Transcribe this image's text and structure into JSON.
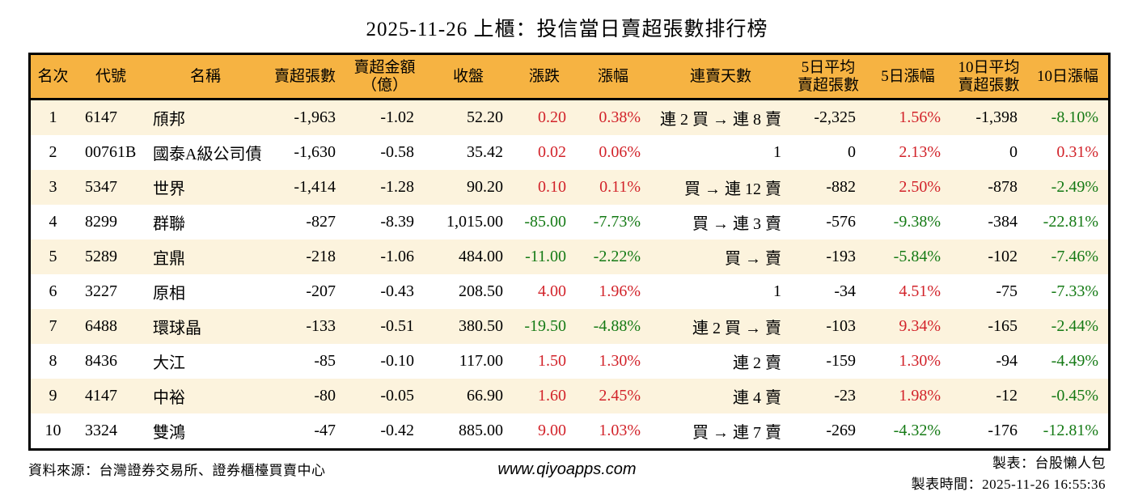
{
  "title": "2025-11-26 上櫃：投信當日賣超張數排行榜",
  "colors": {
    "header_bg": "#f6b342",
    "stripe_bg": "#fcf3dd",
    "row_bg": "#ffffff",
    "up_red": "#d2232a",
    "down_green": "#157a15",
    "border_black": "#000000"
  },
  "chart_data": {
    "type": "table",
    "title": "2025-11-26 上櫃：投信當日賣超張數排行榜",
    "columns": [
      {
        "key": "rank",
        "label_lines": [
          "名次"
        ]
      },
      {
        "key": "code",
        "label_lines": [
          "代號"
        ]
      },
      {
        "key": "name",
        "label_lines": [
          "名稱"
        ]
      },
      {
        "key": "sell_qty",
        "label_lines": [
          "賣超張數"
        ]
      },
      {
        "key": "sell_amount",
        "label_lines": [
          "賣超金額",
          "（億）"
        ]
      },
      {
        "key": "close",
        "label_lines": [
          "收盤"
        ]
      },
      {
        "key": "change",
        "label_lines": [
          "漲跌"
        ]
      },
      {
        "key": "change_pct",
        "label_lines": [
          "漲幅"
        ]
      },
      {
        "key": "streak",
        "label_lines": [
          "連賣天數"
        ]
      },
      {
        "key": "avg5_qty",
        "label_lines": [
          "5日平均",
          "賣超張數"
        ]
      },
      {
        "key": "pct5",
        "label_lines": [
          "5日漲幅"
        ]
      },
      {
        "key": "avg10_qty",
        "label_lines": [
          "10日平均",
          "賣超張數"
        ]
      },
      {
        "key": "pct10",
        "label_lines": [
          "10日漲幅"
        ]
      }
    ],
    "rows": [
      {
        "rank": "1",
        "code": "6147",
        "name": "頎邦",
        "sell_qty": "-1,963",
        "sell_amount": "-1.02",
        "close": "52.20",
        "change": "0.20",
        "change_color": "red",
        "change_pct": "0.38%",
        "change_pct_color": "red",
        "streak": "連 2 買 → 連 8 賣",
        "avg5_qty": "-2,325",
        "pct5": "1.56%",
        "pct5_color": "red",
        "avg10_qty": "-1,398",
        "pct10": "-8.10%",
        "pct10_color": "green"
      },
      {
        "rank": "2",
        "code": "00761B",
        "name": "國泰A級公司債",
        "sell_qty": "-1,630",
        "sell_amount": "-0.58",
        "close": "35.42",
        "change": "0.02",
        "change_color": "red",
        "change_pct": "0.06%",
        "change_pct_color": "red",
        "streak": "1",
        "avg5_qty": "0",
        "pct5": "2.13%",
        "pct5_color": "red",
        "avg10_qty": "0",
        "pct10": "0.31%",
        "pct10_color": "red"
      },
      {
        "rank": "3",
        "code": "5347",
        "name": "世界",
        "sell_qty": "-1,414",
        "sell_amount": "-1.28",
        "close": "90.20",
        "change": "0.10",
        "change_color": "red",
        "change_pct": "0.11%",
        "change_pct_color": "red",
        "streak": "買 → 連 12 賣",
        "avg5_qty": "-882",
        "pct5": "2.50%",
        "pct5_color": "red",
        "avg10_qty": "-878",
        "pct10": "-2.49%",
        "pct10_color": "green"
      },
      {
        "rank": "4",
        "code": "8299",
        "name": "群聯",
        "sell_qty": "-827",
        "sell_amount": "-8.39",
        "close": "1,015.00",
        "change": "-85.00",
        "change_color": "green",
        "change_pct": "-7.73%",
        "change_pct_color": "green",
        "streak": "買 → 連 3 賣",
        "avg5_qty": "-576",
        "pct5": "-9.38%",
        "pct5_color": "green",
        "avg10_qty": "-384",
        "pct10": "-22.81%",
        "pct10_color": "green"
      },
      {
        "rank": "5",
        "code": "5289",
        "name": "宜鼎",
        "sell_qty": "-218",
        "sell_amount": "-1.06",
        "close": "484.00",
        "change": "-11.00",
        "change_color": "green",
        "change_pct": "-2.22%",
        "change_pct_color": "green",
        "streak": "買 → 賣",
        "avg5_qty": "-193",
        "pct5": "-5.84%",
        "pct5_color": "green",
        "avg10_qty": "-102",
        "pct10": "-7.46%",
        "pct10_color": "green"
      },
      {
        "rank": "6",
        "code": "3227",
        "name": "原相",
        "sell_qty": "-207",
        "sell_amount": "-0.43",
        "close": "208.50",
        "change": "4.00",
        "change_color": "red",
        "change_pct": "1.96%",
        "change_pct_color": "red",
        "streak": "1",
        "avg5_qty": "-34",
        "pct5": "4.51%",
        "pct5_color": "red",
        "avg10_qty": "-75",
        "pct10": "-7.33%",
        "pct10_color": "green"
      },
      {
        "rank": "7",
        "code": "6488",
        "name": "環球晶",
        "sell_qty": "-133",
        "sell_amount": "-0.51",
        "close": "380.50",
        "change": "-19.50",
        "change_color": "green",
        "change_pct": "-4.88%",
        "change_pct_color": "green",
        "streak": "連 2 買 → 賣",
        "avg5_qty": "-103",
        "pct5": "9.34%",
        "pct5_color": "red",
        "avg10_qty": "-165",
        "pct10": "-2.44%",
        "pct10_color": "green"
      },
      {
        "rank": "8",
        "code": "8436",
        "name": "大江",
        "sell_qty": "-85",
        "sell_amount": "-0.10",
        "close": "117.00",
        "change": "1.50",
        "change_color": "red",
        "change_pct": "1.30%",
        "change_pct_color": "red",
        "streak": "連 2 賣",
        "avg5_qty": "-159",
        "pct5": "1.30%",
        "pct5_color": "red",
        "avg10_qty": "-94",
        "pct10": "-4.49%",
        "pct10_color": "green"
      },
      {
        "rank": "9",
        "code": "4147",
        "name": "中裕",
        "sell_qty": "-80",
        "sell_amount": "-0.05",
        "close": "66.90",
        "change": "1.60",
        "change_color": "red",
        "change_pct": "2.45%",
        "change_pct_color": "red",
        "streak": "連 4 賣",
        "avg5_qty": "-23",
        "pct5": "1.98%",
        "pct5_color": "red",
        "avg10_qty": "-12",
        "pct10": "-0.45%",
        "pct10_color": "green"
      },
      {
        "rank": "10",
        "code": "3324",
        "name": "雙鴻",
        "sell_qty": "-47",
        "sell_amount": "-0.42",
        "close": "885.00",
        "change": "9.00",
        "change_color": "red",
        "change_pct": "1.03%",
        "change_pct_color": "red",
        "streak": "買 → 連 7 賣",
        "avg5_qty": "-269",
        "pct5": "-4.32%",
        "pct5_color": "green",
        "avg10_qty": "-176",
        "pct10": "-12.81%",
        "pct10_color": "green"
      }
    ]
  },
  "footer": {
    "source": "資料來源：台灣證券交易所、證券櫃檯買賣中心",
    "website": "www.qiyoapps.com",
    "maker": "製表：台股懶人包",
    "timestamp": "製表時間：2025-11-26 16:55:36"
  }
}
